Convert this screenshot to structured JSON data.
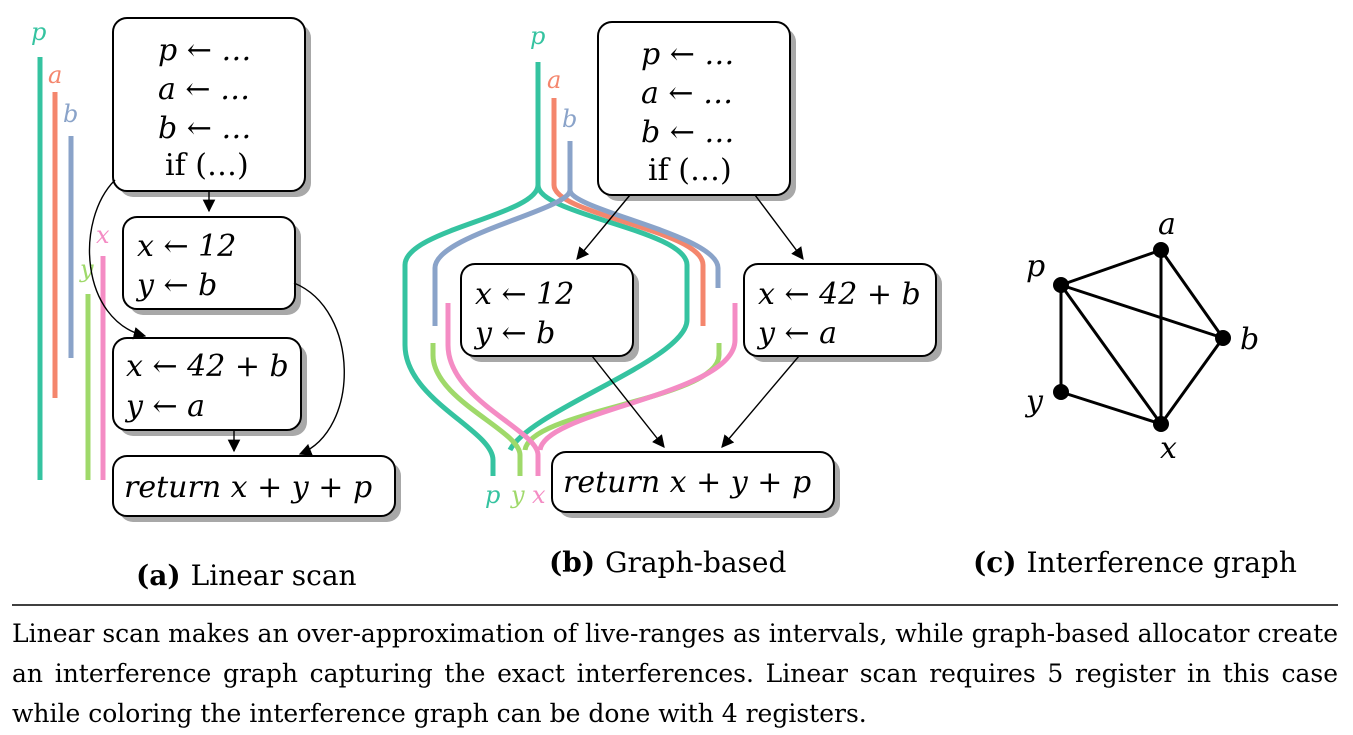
{
  "colors": {
    "p": "#35c3a0",
    "a": "#f4866d",
    "b": "#8aa3c9",
    "x": "#f48cc4",
    "y": "#9fd96a"
  },
  "variables": {
    "p": "p",
    "a": "a",
    "b": "b",
    "x": "x",
    "y": "y"
  },
  "blocks": {
    "entry": [
      "p ← …",
      "a ← …",
      "b ← …",
      "if (…)"
    ],
    "left": [
      "x ← 12",
      "y ← b"
    ],
    "right": [
      "x ← 42 + b",
      "y ← a"
    ],
    "exit": "return  x + y + p"
  },
  "subfigures": {
    "a": {
      "tag": "(a)",
      "title": "Linear scan"
    },
    "b": {
      "tag": "(b)",
      "title": "Graph-based"
    },
    "c": {
      "tag": "(c)",
      "title": "Interference graph"
    }
  },
  "interference_graph": {
    "nodes": [
      "a",
      "p",
      "b",
      "y",
      "x"
    ],
    "edges": [
      [
        "p",
        "a"
      ],
      [
        "p",
        "b"
      ],
      [
        "p",
        "x"
      ],
      [
        "p",
        "y"
      ],
      [
        "a",
        "b"
      ],
      [
        "a",
        "x"
      ],
      [
        "b",
        "x"
      ],
      [
        "y",
        "x"
      ]
    ]
  },
  "caption": "Linear scan makes an over-approximation of live-ranges as intervals, while graph-based allocator create an interference graph capturing the exact interferences. Linear scan requires 5 register in this case while coloring the interference graph can be done with 4 registers."
}
